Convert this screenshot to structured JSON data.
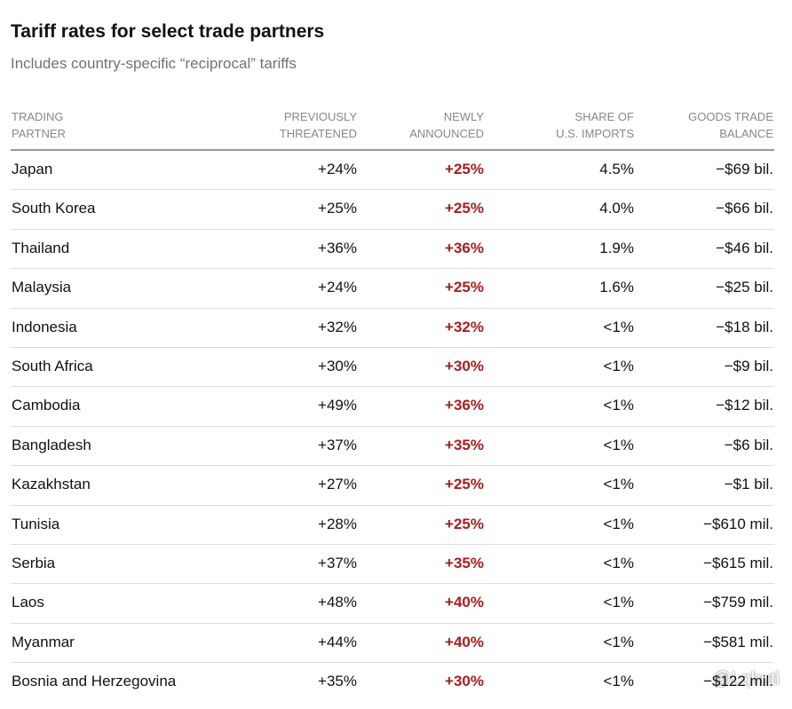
{
  "header": {
    "title": "Tariff rates for select trade partners",
    "subtitle": "Includes country-specific “reciprocal” tariffs"
  },
  "table": {
    "columns": [
      [
        "TRADING",
        "PARTNER"
      ],
      [
        "PREVIOUSLY",
        "THREATENED"
      ],
      [
        "NEWLY",
        "ANNOUNCED"
      ],
      [
        "SHARE OF",
        "U.S. IMPORTS"
      ],
      [
        "GOODS TRADE",
        "BALANCE"
      ]
    ],
    "rows": [
      [
        "Japan",
        "+24%",
        "+25%",
        "4.5%",
        "−$69 bil."
      ],
      [
        "South Korea",
        "+25%",
        "+25%",
        "4.0%",
        "−$66 bil."
      ],
      [
        "Thailand",
        "+36%",
        "+36%",
        "1.9%",
        "−$46 bil."
      ],
      [
        "Malaysia",
        "+24%",
        "+25%",
        "1.6%",
        "−$25 bil."
      ],
      [
        "Indonesia",
        "+32%",
        "+32%",
        "<1%",
        "−$18 bil."
      ],
      [
        "South Africa",
        "+30%",
        "+30%",
        "<1%",
        "−$9 bil."
      ],
      [
        "Cambodia",
        "+49%",
        "+36%",
        "<1%",
        "−$12 bil."
      ],
      [
        "Bangladesh",
        "+37%",
        "+35%",
        "<1%",
        "−$6 bil."
      ],
      [
        "Kazakhstan",
        "+27%",
        "+25%",
        "<1%",
        "−$1 bil."
      ],
      [
        "Tunisia",
        "+28%",
        "+25%",
        "<1%",
        "−$610 mil."
      ],
      [
        "Serbia",
        "+37%",
        "+35%",
        "<1%",
        "−$615 mil."
      ],
      [
        "Laos",
        "+48%",
        "+40%",
        "<1%",
        "−$759 mil."
      ],
      [
        "Myanmar",
        "+44%",
        "+40%",
        "<1%",
        "−$581 mil."
      ],
      [
        "Bosnia and Herzegovina",
        "+35%",
        "+30%",
        "<1%",
        "−$122 mil."
      ]
    ]
  },
  "watermark": "@Lqhuti"
}
